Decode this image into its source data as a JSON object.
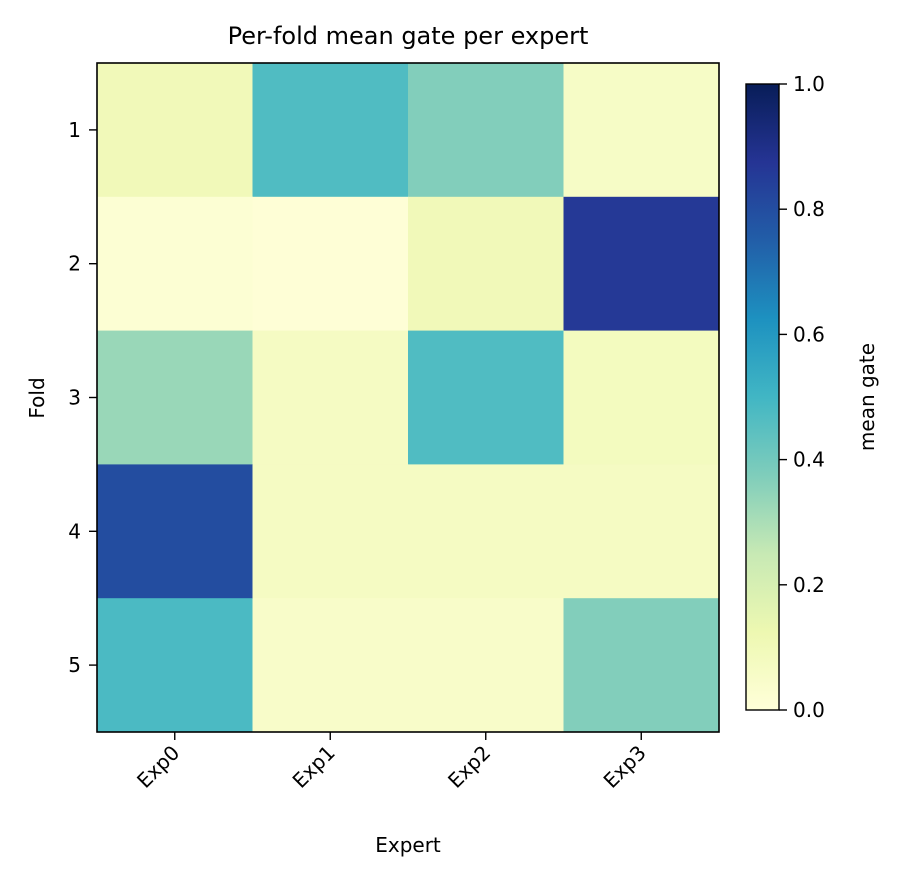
{
  "chart_data": {
    "type": "heatmap",
    "title": "Per-fold mean gate per expert",
    "xlabel": "Expert",
    "ylabel": "Fold",
    "x_categories": [
      "Exp0",
      "Exp1",
      "Exp2",
      "Exp3"
    ],
    "y_categories": [
      "1",
      "2",
      "3",
      "4",
      "5"
    ],
    "values": [
      [
        0.1,
        0.47,
        0.37,
        0.06
      ],
      [
        0.02,
        0.01,
        0.1,
        0.86
      ],
      [
        0.33,
        0.07,
        0.47,
        0.08
      ],
      [
        0.8,
        0.07,
        0.07,
        0.07
      ],
      [
        0.48,
        0.05,
        0.05,
        0.37
      ]
    ],
    "colorbar": {
      "label": "mean gate",
      "range": [
        0.0,
        1.0
      ],
      "ticks": [
        "0.0",
        "0.2",
        "0.4",
        "0.6",
        "0.8",
        "1.0"
      ],
      "colormap": "YlGnBu",
      "stops": [
        [
          0.0,
          "#ffffd9"
        ],
        [
          0.125,
          "#edf8b1"
        ],
        [
          0.25,
          "#c7e9b4"
        ],
        [
          0.375,
          "#7fcdbb"
        ],
        [
          0.5,
          "#41b6c4"
        ],
        [
          0.625,
          "#1d91c0"
        ],
        [
          0.75,
          "#225ea8"
        ],
        [
          0.875,
          "#253494"
        ],
        [
          1.0,
          "#081d58"
        ]
      ]
    }
  }
}
